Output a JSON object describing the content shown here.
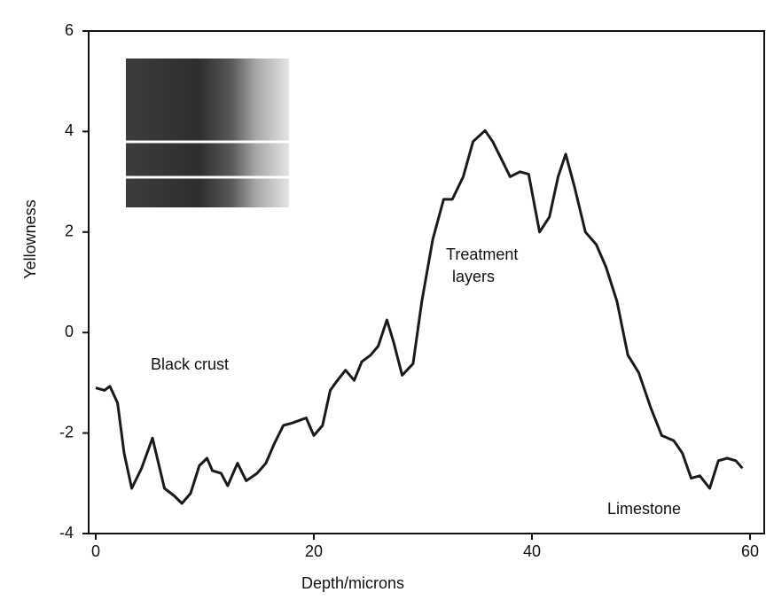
{
  "chart_data": {
    "type": "line",
    "xlabel": "Depth/microns",
    "ylabel": "Yellowness",
    "annotations": [
      "Black crust",
      "Treatment layers",
      "Limestone"
    ],
    "xlim": [
      -0.65,
      61.3
    ],
    "xticks": [
      0,
      20,
      40,
      60
    ],
    "ylim": [
      -4,
      6
    ],
    "yticks": [
      -4,
      -2,
      0,
      2,
      4,
      6
    ],
    "grid": false,
    "series": [
      {
        "color": "#1a1a1a",
        "x": [
          0,
          0.8,
          1.3,
          2,
          2.6,
          3.3,
          4.2,
          5.2,
          6.3,
          7.2,
          7.9,
          8.7,
          9.5,
          10.2,
          10.7,
          11.5,
          12.1,
          13,
          13.8,
          14.8,
          15.6,
          16.4,
          17.2,
          18,
          19.3,
          20,
          20.8,
          21.5,
          22.1,
          22.9,
          23.7,
          24.4,
          25.2,
          25.9,
          26.7,
          27.3,
          28.1,
          29.1,
          29.9,
          30.9,
          31.9,
          32.7,
          33.7,
          34.6,
          35.7,
          36.4,
          37.2,
          38,
          38.9,
          39.7,
          40.7,
          41.6,
          42.4,
          43.1,
          43.9,
          44.9,
          45.9,
          46.8,
          47.8,
          48.8,
          49.8,
          50.9,
          51.9,
          53,
          53.8,
          54.6,
          55.4,
          56.3,
          57.1,
          57.9,
          58.7,
          59.3
        ],
        "values": [
          -1.1,
          -1.15,
          -1.07,
          -1.4,
          -2.4,
          -3.1,
          -2.7,
          -2.1,
          -3.1,
          -3.25,
          -3.4,
          -3.2,
          -2.65,
          -2.5,
          -2.75,
          -2.8,
          -3.05,
          -2.6,
          -2.95,
          -2.8,
          -2.6,
          -2.2,
          -1.85,
          -1.8,
          -1.7,
          -2.05,
          -1.85,
          -1.15,
          -0.97,
          -0.75,
          -0.95,
          -0.58,
          -0.45,
          -0.27,
          0.25,
          -0.18,
          -0.85,
          -0.62,
          0.62,
          1.85,
          2.65,
          2.65,
          3.1,
          3.8,
          4.02,
          3.8,
          3.45,
          3.1,
          3.2,
          3.15,
          2.0,
          2.3,
          3.1,
          3.55,
          2.9,
          2.0,
          1.75,
          1.3,
          0.62,
          -0.45,
          -0.8,
          -1.5,
          -2.05,
          -2.15,
          -2.4,
          -2.9,
          -2.85,
          -3.1,
          -2.55,
          -2.5,
          -2.55,
          -2.7
        ]
      }
    ]
  }
}
